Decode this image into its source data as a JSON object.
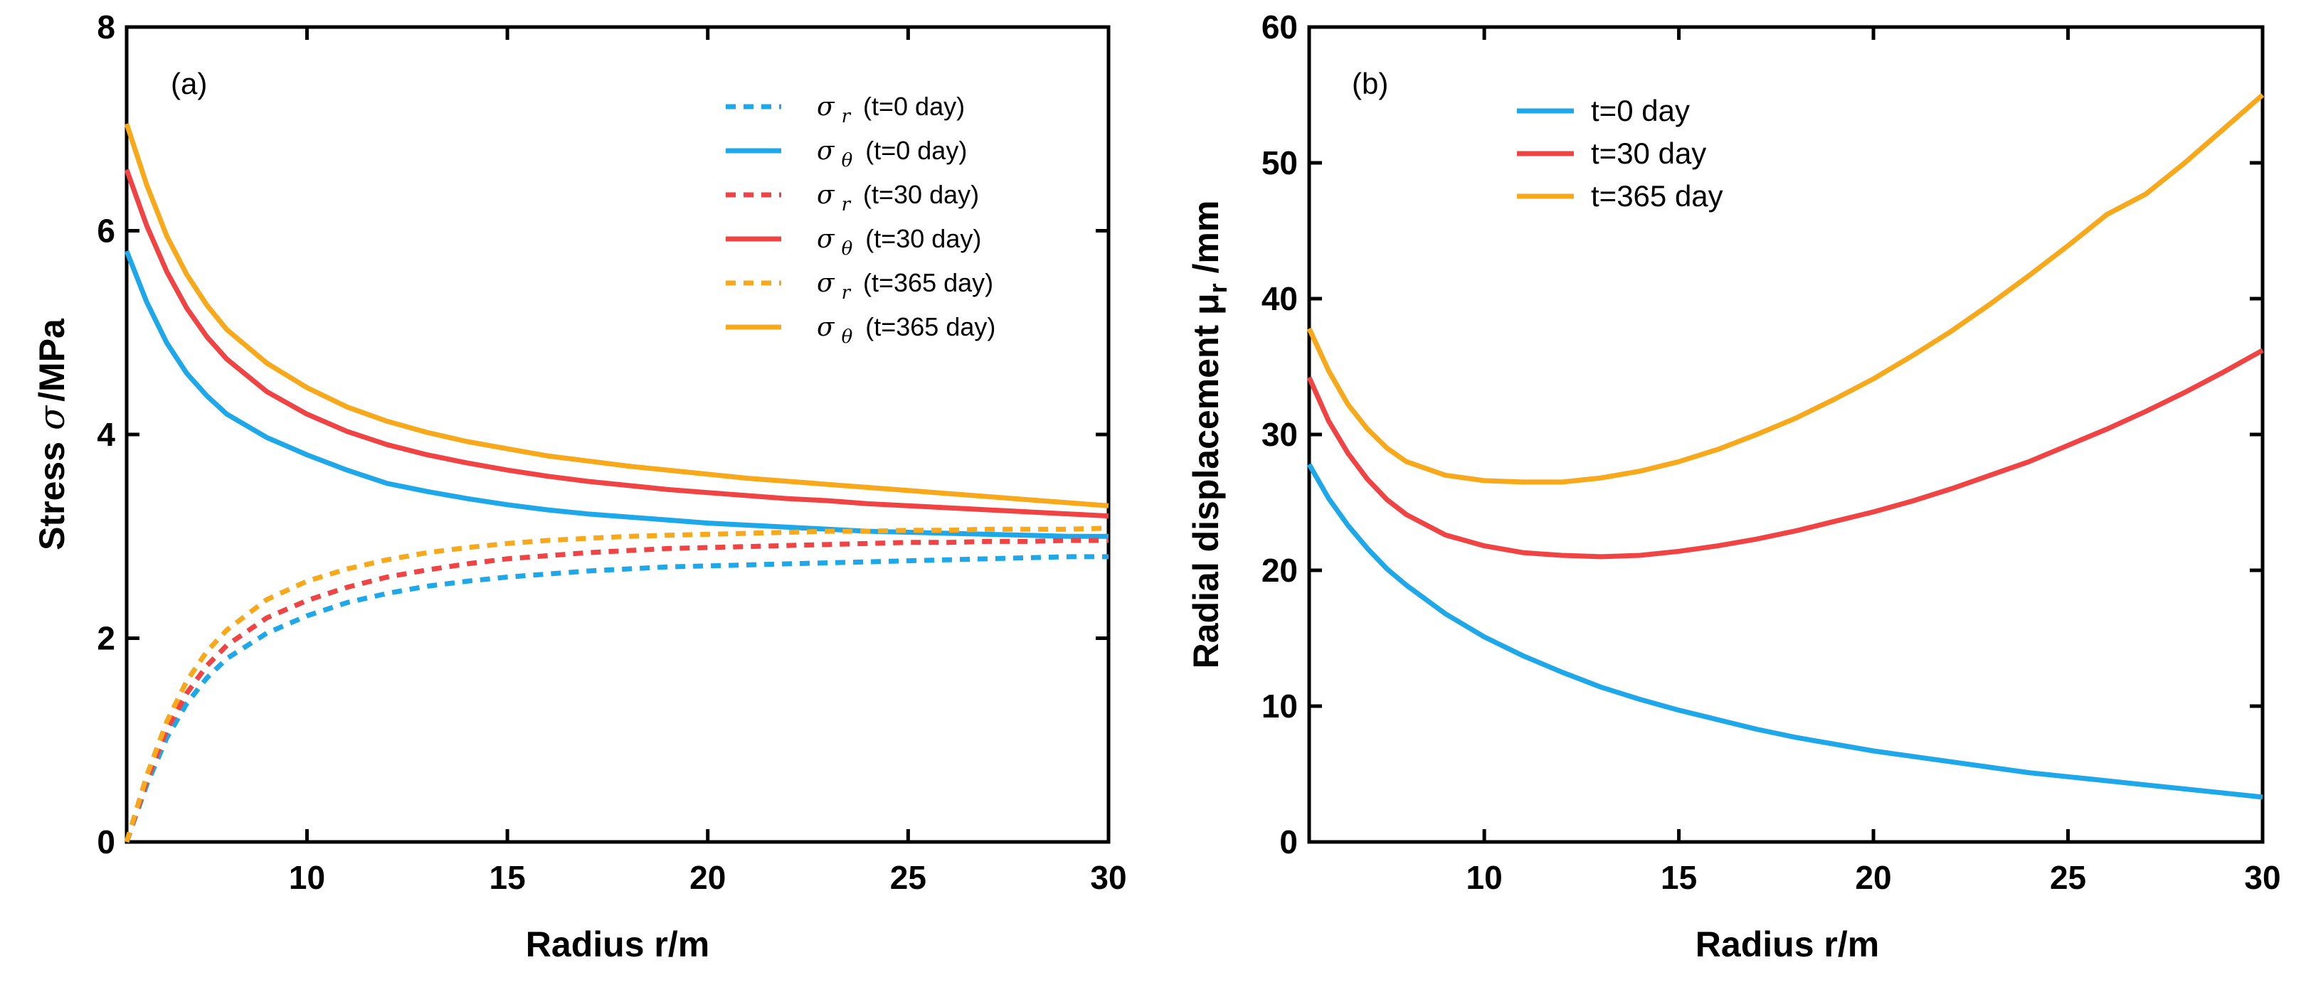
{
  "chart_data": [
    {
      "type": "line",
      "panel_label": "(a)",
      "title": "",
      "xlabel": "Radius r/m",
      "ylabel_prefix": "Stress",
      "ylabel_symbol": "σ",
      "ylabel_suffix": "/MPa",
      "xlim": [
        5.5,
        30
      ],
      "ylim": [
        0,
        8
      ],
      "xticks": [
        10,
        15,
        20,
        25,
        30
      ],
      "yticks": [
        0,
        2,
        4,
        6,
        8
      ],
      "grid": false,
      "legend_position": "top-right",
      "x": [
        5.5,
        6,
        6.5,
        7,
        7.5,
        8,
        9,
        10,
        11,
        12,
        13,
        14,
        15,
        16,
        17,
        18,
        19,
        20,
        21,
        22,
        23,
        24,
        25,
        26,
        27,
        28,
        29,
        30
      ],
      "series": [
        {
          "name": "σr (t=0 day)",
          "symbol": "σ",
          "sub": "r",
          "note": "(t=0 day)",
          "color": "#1ea8ea",
          "dash": true,
          "values": [
            0.0,
            0.56,
            1.02,
            1.36,
            1.61,
            1.8,
            2.05,
            2.22,
            2.35,
            2.44,
            2.51,
            2.56,
            2.6,
            2.63,
            2.66,
            2.68,
            2.7,
            2.71,
            2.72,
            2.73,
            2.74,
            2.75,
            2.76,
            2.77,
            2.78,
            2.79,
            2.8,
            2.8
          ]
        },
        {
          "name": "σθ (t=0 day)",
          "symbol": "σ",
          "sub": "θ",
          "note": "(t=0 day)",
          "color": "#1ea8ea",
          "dash": false,
          "values": [
            5.8,
            5.3,
            4.9,
            4.6,
            4.38,
            4.2,
            3.97,
            3.8,
            3.65,
            3.52,
            3.44,
            3.37,
            3.31,
            3.26,
            3.22,
            3.19,
            3.16,
            3.13,
            3.11,
            3.09,
            3.07,
            3.05,
            3.04,
            3.03,
            3.02,
            3.01,
            3.0,
            3.0
          ]
        },
        {
          "name": "σr (t=30 day)",
          "symbol": "σ",
          "sub": "r",
          "note": "(t=30 day)",
          "color": "#f04444",
          "dash": true,
          "values": [
            0.0,
            0.6,
            1.1,
            1.46,
            1.73,
            1.93,
            2.2,
            2.37,
            2.5,
            2.6,
            2.67,
            2.73,
            2.78,
            2.81,
            2.84,
            2.86,
            2.88,
            2.89,
            2.9,
            2.91,
            2.92,
            2.93,
            2.94,
            2.94,
            2.95,
            2.95,
            2.96,
            2.96
          ]
        },
        {
          "name": "σθ (t=30 day)",
          "symbol": "σ",
          "sub": "θ",
          "note": "(t=30 day)",
          "color": "#f04444",
          "dash": false,
          "values": [
            6.6,
            6.05,
            5.6,
            5.24,
            4.96,
            4.74,
            4.42,
            4.2,
            4.03,
            3.9,
            3.8,
            3.72,
            3.65,
            3.59,
            3.54,
            3.5,
            3.46,
            3.43,
            3.4,
            3.37,
            3.35,
            3.32,
            3.3,
            3.28,
            3.26,
            3.24,
            3.22,
            3.2
          ]
        },
        {
          "name": "σr (t=365 day)",
          "symbol": "σ",
          "sub": "r",
          "note": "(t=365 day)",
          "color": "#f8a81b",
          "dash": true,
          "values": [
            0.0,
            0.65,
            1.18,
            1.58,
            1.87,
            2.08,
            2.38,
            2.56,
            2.68,
            2.77,
            2.84,
            2.89,
            2.93,
            2.96,
            2.98,
            3.0,
            3.01,
            3.02,
            3.03,
            3.04,
            3.05,
            3.05,
            3.06,
            3.06,
            3.07,
            3.07,
            3.07,
            3.08
          ]
        },
        {
          "name": "σθ (t=365 day)",
          "symbol": "σ",
          "sub": "θ",
          "note": "(t=365 day)",
          "color": "#f8a81b",
          "dash": false,
          "values": [
            7.05,
            6.45,
            5.95,
            5.57,
            5.27,
            5.03,
            4.7,
            4.46,
            4.27,
            4.13,
            4.02,
            3.93,
            3.86,
            3.79,
            3.74,
            3.69,
            3.65,
            3.61,
            3.57,
            3.54,
            3.51,
            3.48,
            3.45,
            3.42,
            3.39,
            3.36,
            3.33,
            3.3
          ]
        }
      ]
    },
    {
      "type": "line",
      "panel_label": "(b)",
      "title": "",
      "xlabel": "Radius r/m",
      "ylabel_main": "Radial displacement μ",
      "ylabel_sub": "r",
      "ylabel_suffix": " /mm",
      "xlim": [
        5.5,
        30
      ],
      "ylim": [
        0,
        60
      ],
      "xticks": [
        10,
        15,
        20,
        25,
        30
      ],
      "yticks": [
        0,
        10,
        20,
        30,
        40,
        50,
        60
      ],
      "grid": false,
      "legend_position": "top-left",
      "x": [
        5.5,
        6,
        6.5,
        7,
        7.5,
        8,
        9,
        10,
        11,
        12,
        13,
        14,
        15,
        16,
        17,
        18,
        19,
        20,
        21,
        22,
        23,
        24,
        25,
        26,
        27,
        28,
        29,
        30
      ],
      "series": [
        {
          "name": "t=0 day",
          "color": "#1ea8ea",
          "dash": false,
          "values": [
            27.8,
            25.3,
            23.3,
            21.6,
            20.1,
            18.9,
            16.8,
            15.1,
            13.7,
            12.5,
            11.4,
            10.5,
            9.7,
            9.0,
            8.3,
            7.7,
            7.2,
            6.7,
            6.3,
            5.9,
            5.5,
            5.1,
            4.8,
            4.5,
            4.2,
            3.9,
            3.6,
            3.3
          ]
        },
        {
          "name": "t=30 day",
          "color": "#f04444",
          "dash": false,
          "values": [
            34.2,
            31.0,
            28.6,
            26.7,
            25.2,
            24.1,
            22.6,
            21.8,
            21.3,
            21.1,
            21.0,
            21.1,
            21.4,
            21.8,
            22.3,
            22.9,
            23.6,
            24.3,
            25.1,
            26.0,
            27.0,
            28.0,
            29.2,
            30.4,
            31.7,
            33.1,
            34.6,
            36.2
          ]
        },
        {
          "name": "t=365 day",
          "color": "#f8a81b",
          "dash": false,
          "values": [
            37.8,
            34.7,
            32.2,
            30.4,
            29.0,
            28.0,
            27.0,
            26.6,
            26.5,
            26.5,
            26.8,
            27.3,
            28.0,
            28.9,
            30.0,
            31.2,
            32.6,
            34.1,
            35.8,
            37.6,
            39.6,
            41.7,
            43.9,
            46.2,
            47.7,
            50.0,
            52.5,
            55.0
          ]
        }
      ]
    }
  ]
}
